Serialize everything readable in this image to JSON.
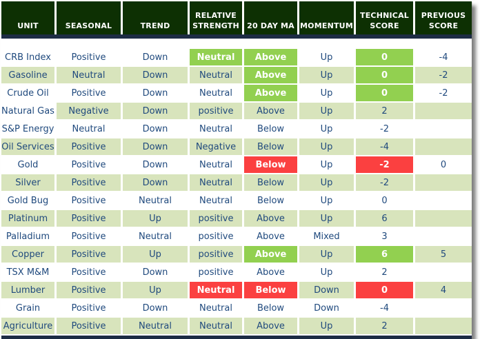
{
  "chart_data": {
    "type": "table",
    "title": "Commodity technical score table",
    "columns": [
      {
        "key": "unit",
        "label": "UNIT"
      },
      {
        "key": "seasonal",
        "label": "SEASONAL"
      },
      {
        "key": "trend",
        "label": "TREND"
      },
      {
        "key": "relative-strength",
        "label": "RELATIVE STRENGTH"
      },
      {
        "key": "20-day-ma",
        "label": "20 DAY MA"
      },
      {
        "key": "momentum",
        "label": "MOMENTUM"
      },
      {
        "key": "technical-score",
        "label": "TECHNICAL SCORE"
      },
      {
        "key": "previous-score",
        "label": "PREVIOUS SCORE"
      }
    ],
    "rows": [
      {
        "cells": [
          "CRB Index",
          "Positive",
          "Down",
          "Neutral",
          "Above",
          "Up",
          "0",
          "-4"
        ],
        "shaded": false,
        "highlights": {
          "3": "green",
          "4": "green",
          "6": "green"
        }
      },
      {
        "cells": [
          "Gasoline",
          "Neutral",
          "Down",
          "Neutral",
          "Above",
          "Up",
          "0",
          "-2"
        ],
        "shaded": true,
        "highlights": {
          "4": "green",
          "6": "green"
        }
      },
      {
        "cells": [
          "Crude Oil",
          "Positive",
          "Down",
          "Neutral",
          "Above",
          "Up",
          "0",
          "-2"
        ],
        "shaded": false,
        "highlights": {
          "4": "green",
          "6": "green"
        }
      },
      {
        "cells": [
          "Natural Gas",
          "Negative",
          "Down",
          "positive",
          "Above",
          "Up",
          "2",
          ""
        ],
        "shaded": true,
        "highlights": {},
        "white_cells": [
          0
        ]
      },
      {
        "cells": [
          "S&P Energy",
          "Neutral",
          "Down",
          "Neutral",
          "Below",
          "Up",
          "-2",
          ""
        ],
        "shaded": false,
        "highlights": {}
      },
      {
        "cells": [
          "Oil Services",
          "Positive",
          "Down",
          "Negative",
          "Below",
          "Up",
          "-4",
          ""
        ],
        "shaded": true,
        "highlights": {}
      },
      {
        "cells": [
          "Gold",
          "Positive",
          "Down",
          "Neutral",
          "Below",
          "Up",
          "-2",
          "0"
        ],
        "shaded": false,
        "highlights": {
          "4": "red",
          "6": "red"
        }
      },
      {
        "cells": [
          "Silver",
          "Positive",
          "Down",
          "Neutral",
          "Below",
          "Up",
          "-2",
          ""
        ],
        "shaded": true,
        "highlights": {}
      },
      {
        "cells": [
          "Gold Bug",
          "Positive",
          "Neutral",
          "Neutral",
          "Below",
          "Up",
          "0",
          ""
        ],
        "shaded": false,
        "highlights": {}
      },
      {
        "cells": [
          "Platinum",
          "Positive",
          "Up",
          "positive",
          "Above",
          "Up",
          "6",
          ""
        ],
        "shaded": true,
        "highlights": {}
      },
      {
        "cells": [
          "Palladium",
          "Positive",
          "Neutral",
          "positive",
          "Above",
          "Mixed",
          "3",
          ""
        ],
        "shaded": false,
        "highlights": {}
      },
      {
        "cells": [
          "Copper",
          "Positive",
          "Up",
          "positive",
          "Above",
          "Up",
          "6",
          "5"
        ],
        "shaded": true,
        "highlights": {
          "4": "green",
          "6": "green"
        }
      },
      {
        "cells": [
          "TSX M&M",
          "Positive",
          "Down",
          "positive",
          "Above",
          "Up",
          "2",
          ""
        ],
        "shaded": false,
        "highlights": {}
      },
      {
        "cells": [
          "Lumber",
          "Positive",
          "Up",
          "Neutral",
          "Below",
          "Down",
          "0",
          "4"
        ],
        "shaded": true,
        "highlights": {
          "3": "red",
          "4": "red",
          "6": "red"
        }
      },
      {
        "cells": [
          "Grain",
          "Positive",
          "Down",
          "Neutral",
          "Below",
          "Down",
          "-4",
          ""
        ],
        "shaded": false,
        "highlights": {}
      },
      {
        "cells": [
          "Agriculture",
          "Positive",
          "Neutral",
          "Neutral",
          "Above",
          "Up",
          "2",
          ""
        ],
        "shaded": true,
        "highlights": {}
      }
    ],
    "legend_position": "none",
    "grid": false
  },
  "colors": {
    "header_green": "#0d3003",
    "navy_line": "#1d2c44",
    "row_shade_green": "#d8e4bc",
    "highlight_green": "#92d050",
    "highlight_red": "#fb4040",
    "data_text": "#1F497D",
    "header_text": "#ffffff"
  }
}
